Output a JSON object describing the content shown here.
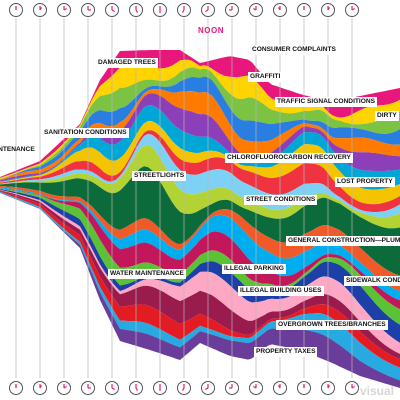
{
  "chart_data": {
    "type": "area",
    "title": "",
    "xlabel": "",
    "ylabel": "",
    "time_marker": "NOON",
    "categories": [
      "DAMAGED TREES",
      "CONSUMER COMPLAINTS",
      "GRAFFITI",
      "TRAFFIC SIGNAL CONDITIONS",
      "DIRTY",
      "MAINTENANCE",
      "SANITATION CONDITIONS",
      "STREETLIGHTS",
      "CHLOROFLUOROCARBON RECOVERY",
      "LOST PROPERTY",
      "STREET CONDITIONS",
      "GENERAL CONSTRUCTION—PLUM",
      "WATER MAINTENANCE",
      "ILLEGAL PARKING",
      "SIDEWALK CONDI",
      "ILLEGAL BUILDING USES",
      "OVERGROWN TREES/BRANCHES",
      "PROPERTY TAXES"
    ],
    "colors": [
      "#e8177c",
      "#ffd400",
      "#7cc243",
      "#2a7de1",
      "#ff7a00",
      "#8c3fb8",
      "#00a6d6",
      "#f4c400",
      "#ef3340",
      "#7cd1f5",
      "#b3d335",
      "#0c6b3a",
      "#f05a28",
      "#00aeef",
      "#c2185b",
      "#5bc236",
      "#1c3fa8",
      "#ffa8c5",
      "#9a1b4e",
      "#e31b23",
      "#27a9e1",
      "#6a3d9a"
    ]
  },
  "watermark": "visual"
}
